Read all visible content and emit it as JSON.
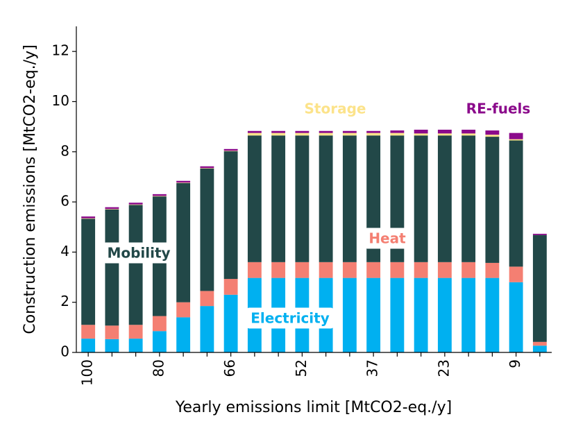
{
  "chart_data": {
    "type": "bar",
    "stacked": true,
    "x_label": "Yearly emissions limit [MtCO2-eq./y]",
    "y_label": "Construction emissions [MtCO2-eq./y]",
    "categories": [
      "100",
      null,
      null,
      "80",
      null,
      null,
      "66",
      null,
      null,
      "52",
      null,
      null,
      "37",
      null,
      null,
      "23",
      null,
      null,
      "9",
      null
    ],
    "ylim": [
      0,
      13
    ],
    "yticks": [
      0,
      2,
      4,
      6,
      8,
      10,
      12
    ],
    "series": [
      {
        "name": "Electricity",
        "color": "#00b0f0",
        "values": [
          0.55,
          0.53,
          0.55,
          0.85,
          1.4,
          1.85,
          2.3,
          2.97,
          2.97,
          2.97,
          2.97,
          2.97,
          2.97,
          2.97,
          2.97,
          2.97,
          2.97,
          2.97,
          2.8,
          0.27
        ]
      },
      {
        "name": "Heat",
        "color": "#f47f72",
        "values": [
          0.55,
          0.54,
          0.55,
          0.6,
          0.6,
          0.6,
          0.63,
          0.63,
          0.63,
          0.63,
          0.63,
          0.63,
          0.63,
          0.63,
          0.63,
          0.63,
          0.63,
          0.6,
          0.62,
          0.15
        ]
      },
      {
        "name": "Mobility",
        "color": "#224848",
        "values": [
          4.23,
          4.63,
          4.78,
          4.77,
          4.75,
          4.88,
          5.09,
          5.05,
          5.05,
          5.05,
          5.05,
          5.05,
          5.05,
          5.05,
          5.05,
          5.05,
          5.05,
          5.03,
          5.03,
          4.26
        ]
      },
      {
        "name": "Storage",
        "color": "#fce38a",
        "values": [
          0.02,
          0.02,
          0.02,
          0.02,
          0.02,
          0.02,
          0.02,
          0.1,
          0.1,
          0.1,
          0.1,
          0.1,
          0.1,
          0.1,
          0.08,
          0.08,
          0.08,
          0.08,
          0.05,
          0.0
        ]
      },
      {
        "name": "RE-fuels",
        "color": "#8b0a8b",
        "values": [
          0.07,
          0.07,
          0.07,
          0.07,
          0.07,
          0.07,
          0.07,
          0.08,
          0.08,
          0.08,
          0.08,
          0.08,
          0.08,
          0.1,
          0.15,
          0.15,
          0.15,
          0.17,
          0.25,
          0.05
        ]
      }
    ]
  }
}
